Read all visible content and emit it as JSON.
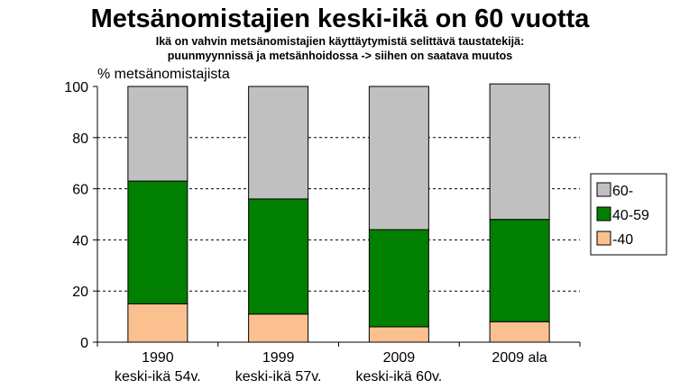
{
  "chart_data": {
    "type": "bar",
    "stacked": true,
    "title": "Metsänomistajien keski-ikä on 60 vuotta",
    "subtitle_lines": [
      "Ikä on vahvin metsänomistajien käyttäytymistä selittävä taustatekijä:",
      "puunmyynnissä ja metsänhoidossa -> siihen on saatava muutos"
    ],
    "ylabel": "% metsänomistajista",
    "ylim": [
      0,
      100
    ],
    "yticks": [
      0,
      20,
      40,
      60,
      80,
      100
    ],
    "grid": "dashed horizontal",
    "legend_position": "right",
    "categories": [
      [
        "1990",
        "keski-ikä 54v."
      ],
      [
        "1999",
        "keski-ikä 57v."
      ],
      [
        "2009",
        "keski-ikä 60v."
      ],
      [
        "2009 ala",
        ""
      ]
    ],
    "series": [
      {
        "name": "-40",
        "color": "#fac090",
        "values": [
          15,
          11,
          6,
          8
        ]
      },
      {
        "name": "40-59",
        "color": "#007f00",
        "values": [
          48,
          45,
          38,
          40
        ]
      },
      {
        "name": "60-",
        "color": "#c0c0c0",
        "values": [
          37,
          44,
          56,
          53
        ]
      }
    ],
    "legend_order": [
      "60-",
      "40-59",
      "-40"
    ]
  }
}
